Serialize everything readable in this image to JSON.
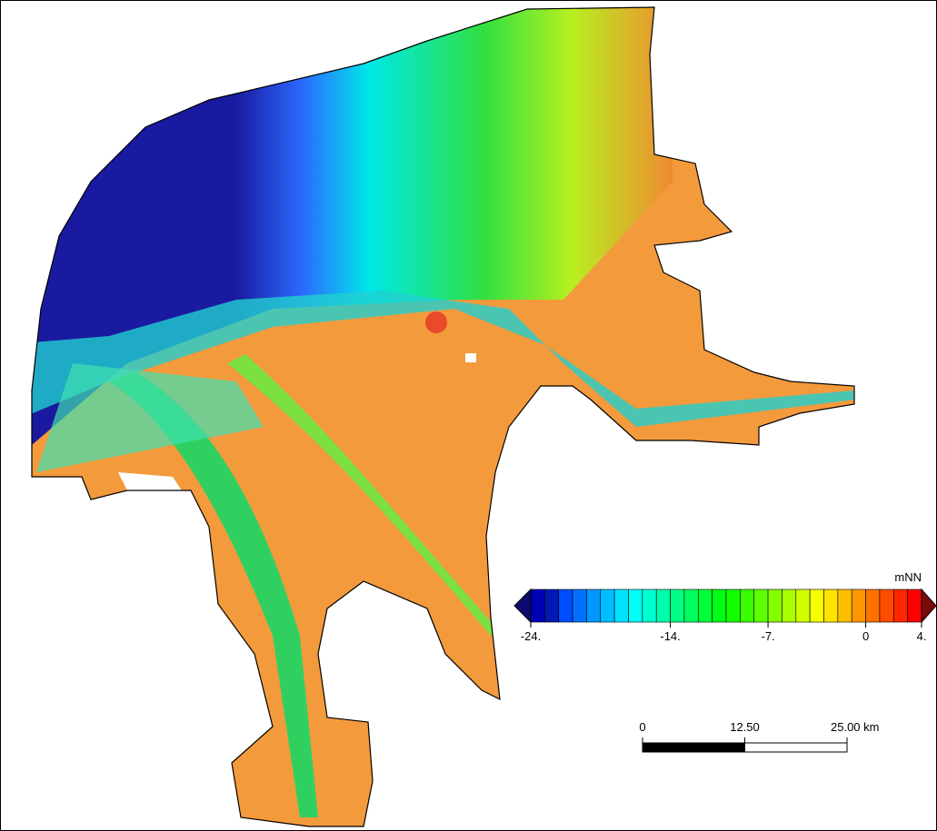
{
  "colorbar": {
    "unit": "mNN",
    "min": -24,
    "max": 4,
    "ticks": [
      {
        "value": -24,
        "label": "-24."
      },
      {
        "value": -14,
        "label": "-14."
      },
      {
        "value": -7,
        "label": "-7."
      },
      0,
      {
        "value": 4,
        "label": "4."
      }
    ]
  },
  "scalebar": {
    "max": 25,
    "ticks": [
      0,
      {
        "value": 12.5,
        "label": "12.50"
      },
      {
        "value": 25,
        "label": "25.00 km"
      }
    ]
  }
}
